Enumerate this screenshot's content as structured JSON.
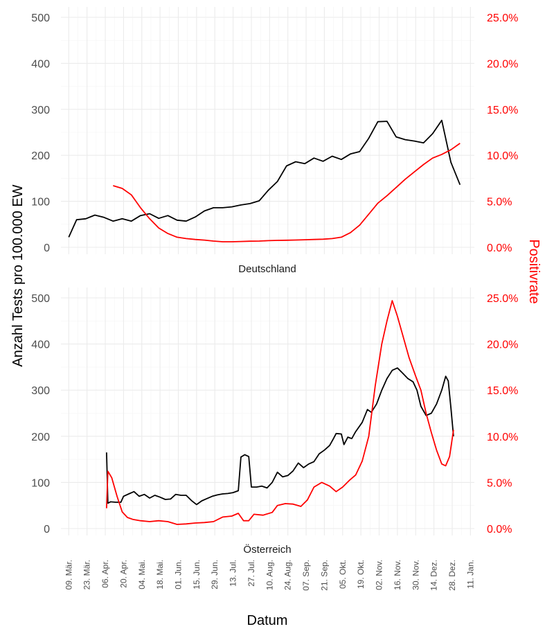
{
  "chart_data": {
    "type": "line",
    "xlabel": "Datum",
    "ylabel_left": "Anzahl Tests pro 100.000 EW",
    "ylabel_right": "Positivrate",
    "x_range": [
      "2020-03-03",
      "2021-01-14"
    ],
    "x_ticks": [
      {
        "date": "2020-03-09",
        "label": "09. Mär."
      },
      {
        "date": "2020-03-23",
        "label": "23. Mär."
      },
      {
        "date": "2020-04-06",
        "label": "06. Apr."
      },
      {
        "date": "2020-04-20",
        "label": "20. Apr."
      },
      {
        "date": "2020-05-04",
        "label": "04. Mai."
      },
      {
        "date": "2020-05-18",
        "label": "18. Mai."
      },
      {
        "date": "2020-06-01",
        "label": "01. Jun."
      },
      {
        "date": "2020-06-15",
        "label": "15. Jun."
      },
      {
        "date": "2020-06-29",
        "label": "29. Jun."
      },
      {
        "date": "2020-07-13",
        "label": "13. Jul."
      },
      {
        "date": "2020-07-27",
        "label": "27. Jul."
      },
      {
        "date": "2020-08-10",
        "label": "10. Aug."
      },
      {
        "date": "2020-08-24",
        "label": "24. Aug."
      },
      {
        "date": "2020-09-07",
        "label": "07. Sep."
      },
      {
        "date": "2020-09-21",
        "label": "21. Sep."
      },
      {
        "date": "2020-10-05",
        "label": "05. Okt."
      },
      {
        "date": "2020-10-19",
        "label": "19. Okt."
      },
      {
        "date": "2020-11-02",
        "label": "02. Nov."
      },
      {
        "date": "2020-11-16",
        "label": "16. Nov."
      },
      {
        "date": "2020-11-30",
        "label": "30. Nov."
      },
      {
        "date": "2020-12-14",
        "label": "14. Dez."
      },
      {
        "date": "2020-12-28",
        "label": "28. Dez."
      },
      {
        "date": "2021-01-11",
        "label": "11. Jan."
      }
    ],
    "y_left": {
      "range": [
        0,
        500
      ],
      "ticks": [
        0,
        100,
        200,
        300,
        400,
        500
      ],
      "labels": [
        "0",
        "100",
        "200",
        "300",
        "400",
        "500"
      ]
    },
    "y_right": {
      "range": [
        0,
        0.25
      ],
      "ticks": [
        0,
        0.05,
        0.1,
        0.15,
        0.2,
        0.25
      ],
      "labels": [
        "0.0%",
        "5.0%",
        "10.0%",
        "15.0%",
        "20.0%",
        "25.0%"
      ]
    },
    "colors": {
      "tests": "#000000",
      "positivrate": "#ff0000"
    },
    "grid": true,
    "panels": [
      {
        "facet": "Deutschland",
        "tests": [
          [
            "2020-03-09",
            22
          ],
          [
            "2020-03-15",
            60
          ],
          [
            "2020-03-22",
            62
          ],
          [
            "2020-03-29",
            70
          ],
          [
            "2020-04-05",
            65
          ],
          [
            "2020-04-12",
            57
          ],
          [
            "2020-04-19",
            62
          ],
          [
            "2020-04-26",
            57
          ],
          [
            "2020-05-03",
            69
          ],
          [
            "2020-05-10",
            73
          ],
          [
            "2020-05-17",
            63
          ],
          [
            "2020-05-24",
            69
          ],
          [
            "2020-05-31",
            59
          ],
          [
            "2020-06-07",
            57
          ],
          [
            "2020-06-14",
            66
          ],
          [
            "2020-06-21",
            79
          ],
          [
            "2020-06-28",
            86
          ],
          [
            "2020-07-05",
            86
          ],
          [
            "2020-07-12",
            88
          ],
          [
            "2020-07-19",
            92
          ],
          [
            "2020-07-26",
            95
          ],
          [
            "2020-08-02",
            101
          ],
          [
            "2020-08-09",
            124
          ],
          [
            "2020-08-16",
            143
          ],
          [
            "2020-08-23",
            177
          ],
          [
            "2020-08-30",
            186
          ],
          [
            "2020-09-06",
            182
          ],
          [
            "2020-09-13",
            194
          ],
          [
            "2020-09-20",
            187
          ],
          [
            "2020-09-27",
            198
          ],
          [
            "2020-10-04",
            191
          ],
          [
            "2020-10-11",
            203
          ],
          [
            "2020-10-18",
            208
          ],
          [
            "2020-10-25",
            237
          ],
          [
            "2020-11-01",
            273
          ],
          [
            "2020-11-08",
            274
          ],
          [
            "2020-11-15",
            240
          ],
          [
            "2020-11-22",
            234
          ],
          [
            "2020-11-29",
            231
          ],
          [
            "2020-12-06",
            227
          ],
          [
            "2020-12-13",
            247
          ],
          [
            "2020-12-20",
            276
          ],
          [
            "2020-12-27",
            185
          ],
          [
            "2021-01-03",
            136
          ]
        ],
        "positivrate": [
          [
            "2020-04-12",
            0.067
          ],
          [
            "2020-04-19",
            0.064
          ],
          [
            "2020-04-26",
            0.057
          ],
          [
            "2020-05-03",
            0.043
          ],
          [
            "2020-05-10",
            0.031
          ],
          [
            "2020-05-17",
            0.021
          ],
          [
            "2020-05-24",
            0.015
          ],
          [
            "2020-05-31",
            0.011
          ],
          [
            "2020-06-07",
            0.0095
          ],
          [
            "2020-06-14",
            0.0085
          ],
          [
            "2020-06-21",
            0.0078
          ],
          [
            "2020-06-28",
            0.0068
          ],
          [
            "2020-07-05",
            0.006
          ],
          [
            "2020-07-12",
            0.006
          ],
          [
            "2020-07-19",
            0.0063
          ],
          [
            "2020-07-26",
            0.0066
          ],
          [
            "2020-08-02",
            0.0068
          ],
          [
            "2020-08-09",
            0.0072
          ],
          [
            "2020-08-16",
            0.0075
          ],
          [
            "2020-08-23",
            0.0077
          ],
          [
            "2020-08-30",
            0.0079
          ],
          [
            "2020-09-06",
            0.0082
          ],
          [
            "2020-09-13",
            0.0085
          ],
          [
            "2020-09-20",
            0.0088
          ],
          [
            "2020-09-27",
            0.0095
          ],
          [
            "2020-10-04",
            0.011
          ],
          [
            "2020-10-11",
            0.016
          ],
          [
            "2020-10-18",
            0.024
          ],
          [
            "2020-10-25",
            0.036
          ],
          [
            "2020-11-01",
            0.048
          ],
          [
            "2020-11-08",
            0.056
          ],
          [
            "2020-11-15",
            0.065
          ],
          [
            "2020-11-22",
            0.074
          ],
          [
            "2020-11-29",
            0.082
          ],
          [
            "2020-12-06",
            0.09
          ],
          [
            "2020-12-13",
            0.097
          ],
          [
            "2020-12-20",
            0.101
          ],
          [
            "2020-12-27",
            0.106
          ],
          [
            "2021-01-03",
            0.113
          ]
        ]
      },
      {
        "facet": "Österreich",
        "tests": [
          [
            "2020-04-07",
            165
          ],
          [
            "2020-04-08",
            55
          ],
          [
            "2020-04-10",
            58
          ],
          [
            "2020-04-14",
            57
          ],
          [
            "2020-04-18",
            57
          ],
          [
            "2020-04-20",
            70
          ],
          [
            "2020-04-24",
            75
          ],
          [
            "2020-04-28",
            80
          ],
          [
            "2020-05-02",
            70
          ],
          [
            "2020-05-06",
            74
          ],
          [
            "2020-05-10",
            66
          ],
          [
            "2020-05-14",
            72
          ],
          [
            "2020-05-18",
            68
          ],
          [
            "2020-05-22",
            63
          ],
          [
            "2020-05-26",
            64
          ],
          [
            "2020-05-30",
            74
          ],
          [
            "2020-06-03",
            72
          ],
          [
            "2020-06-07",
            72
          ],
          [
            "2020-06-11",
            61
          ],
          [
            "2020-06-15",
            52
          ],
          [
            "2020-06-19",
            60
          ],
          [
            "2020-06-23",
            65
          ],
          [
            "2020-06-27",
            70
          ],
          [
            "2020-07-01",
            73
          ],
          [
            "2020-07-05",
            75
          ],
          [
            "2020-07-09",
            76
          ],
          [
            "2020-07-13",
            78
          ],
          [
            "2020-07-17",
            82
          ],
          [
            "2020-07-19",
            155
          ],
          [
            "2020-07-22",
            160
          ],
          [
            "2020-07-25",
            156
          ],
          [
            "2020-07-27",
            90
          ],
          [
            "2020-07-31",
            90
          ],
          [
            "2020-08-04",
            92
          ],
          [
            "2020-08-08",
            88
          ],
          [
            "2020-08-12",
            100
          ],
          [
            "2020-08-16",
            122
          ],
          [
            "2020-08-20",
            112
          ],
          [
            "2020-08-24",
            115
          ],
          [
            "2020-08-28",
            125
          ],
          [
            "2020-09-01",
            142
          ],
          [
            "2020-09-05",
            132
          ],
          [
            "2020-09-09",
            140
          ],
          [
            "2020-09-13",
            145
          ],
          [
            "2020-09-17",
            162
          ],
          [
            "2020-09-21",
            170
          ],
          [
            "2020-09-25",
            180
          ],
          [
            "2020-09-28",
            195
          ],
          [
            "2020-09-30",
            206
          ],
          [
            "2020-10-04",
            205
          ],
          [
            "2020-10-06",
            182
          ],
          [
            "2020-10-09",
            198
          ],
          [
            "2020-10-12",
            195
          ],
          [
            "2020-10-15",
            210
          ],
          [
            "2020-10-20",
            230
          ],
          [
            "2020-10-24",
            258
          ],
          [
            "2020-10-27",
            252
          ],
          [
            "2020-10-31",
            270
          ],
          [
            "2020-11-04",
            300
          ],
          [
            "2020-11-08",
            325
          ],
          [
            "2020-11-12",
            343
          ],
          [
            "2020-11-16",
            348
          ],
          [
            "2020-11-20",
            337
          ],
          [
            "2020-11-24",
            325
          ],
          [
            "2020-11-28",
            318
          ],
          [
            "2020-12-01",
            300
          ],
          [
            "2020-12-04",
            265
          ],
          [
            "2020-12-08",
            245
          ],
          [
            "2020-12-12",
            250
          ],
          [
            "2020-12-16",
            270
          ],
          [
            "2020-12-20",
            300
          ],
          [
            "2020-12-23",
            330
          ],
          [
            "2020-12-25",
            320
          ],
          [
            "2020-12-27",
            262
          ],
          [
            "2020-12-29",
            200
          ]
        ],
        "positivrate": [
          [
            "2020-04-07",
            0.022
          ],
          [
            "2020-04-08",
            0.062
          ],
          [
            "2020-04-11",
            0.055
          ],
          [
            "2020-04-15",
            0.035
          ],
          [
            "2020-04-19",
            0.018
          ],
          [
            "2020-04-23",
            0.012
          ],
          [
            "2020-04-27",
            0.01
          ],
          [
            "2020-05-03",
            0.0085
          ],
          [
            "2020-05-10",
            0.0075
          ],
          [
            "2020-05-17",
            0.0085
          ],
          [
            "2020-05-24",
            0.0075
          ],
          [
            "2020-05-31",
            0.0045
          ],
          [
            "2020-06-07",
            0.005
          ],
          [
            "2020-06-14",
            0.006
          ],
          [
            "2020-06-21",
            0.0065
          ],
          [
            "2020-06-28",
            0.0075
          ],
          [
            "2020-07-05",
            0.0125
          ],
          [
            "2020-07-12",
            0.0135
          ],
          [
            "2020-07-17",
            0.0165
          ],
          [
            "2020-07-21",
            0.0085
          ],
          [
            "2020-07-25",
            0.0085
          ],
          [
            "2020-07-29",
            0.0155
          ],
          [
            "2020-08-05",
            0.0145
          ],
          [
            "2020-08-12",
            0.0175
          ],
          [
            "2020-08-16",
            0.025
          ],
          [
            "2020-08-22",
            0.027
          ],
          [
            "2020-08-28",
            0.0265
          ],
          [
            "2020-09-03",
            0.024
          ],
          [
            "2020-09-08",
            0.031
          ],
          [
            "2020-09-13",
            0.045
          ],
          [
            "2020-09-19",
            0.05
          ],
          [
            "2020-09-25",
            0.046
          ],
          [
            "2020-09-30",
            0.04
          ],
          [
            "2020-10-05",
            0.045
          ],
          [
            "2020-10-10",
            0.052
          ],
          [
            "2020-10-15",
            0.058
          ],
          [
            "2020-10-20",
            0.073
          ],
          [
            "2020-10-25",
            0.1
          ],
          [
            "2020-10-30",
            0.155
          ],
          [
            "2020-11-04",
            0.2
          ],
          [
            "2020-11-08",
            0.225
          ],
          [
            "2020-11-12",
            0.247
          ],
          [
            "2020-11-16",
            0.23
          ],
          [
            "2020-11-20",
            0.21
          ],
          [
            "2020-11-25",
            0.185
          ],
          [
            "2020-11-30",
            0.165
          ],
          [
            "2020-12-04",
            0.15
          ],
          [
            "2020-12-08",
            0.125
          ],
          [
            "2020-12-12",
            0.104
          ],
          [
            "2020-12-16",
            0.085
          ],
          [
            "2020-12-20",
            0.07
          ],
          [
            "2020-12-23",
            0.068
          ],
          [
            "2020-12-26",
            0.078
          ],
          [
            "2020-12-29",
            0.107
          ]
        ]
      }
    ]
  }
}
